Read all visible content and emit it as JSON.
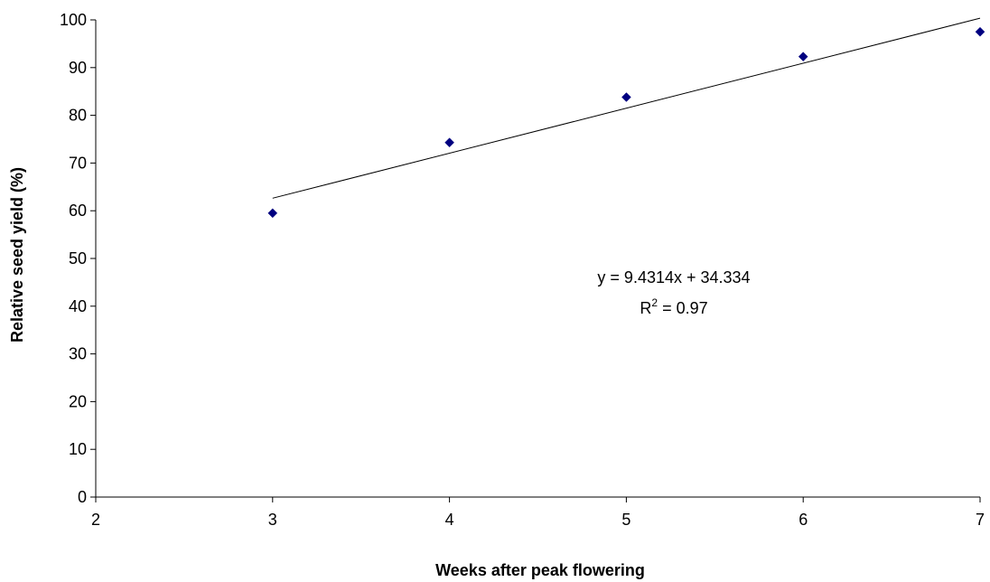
{
  "chart_data": {
    "type": "scatter",
    "xlabel": "Weeks after peak flowering",
    "ylabel": "Relative seed yield (%)",
    "xlim": [
      2,
      7
    ],
    "ylim": [
      0,
      100
    ],
    "xticks": [
      2,
      3,
      4,
      5,
      6,
      7
    ],
    "yticks": [
      0,
      10,
      20,
      30,
      40,
      50,
      60,
      70,
      80,
      90,
      100
    ],
    "grid": false,
    "series": [
      {
        "marker": "diamond",
        "color": "#000080",
        "points": [
          {
            "x": 3,
            "y": 59.5
          },
          {
            "x": 4,
            "y": 74.3
          },
          {
            "x": 5,
            "y": 83.8
          },
          {
            "x": 6,
            "y": 92.3
          },
          {
            "x": 7,
            "y": 97.5
          }
        ]
      }
    ],
    "trendline": {
      "type": "linear",
      "slope": 9.4314,
      "intercept": 34.334,
      "x_range": [
        3,
        7
      ],
      "color": "#000000"
    },
    "annotations": {
      "equation": "y = 9.4314x + 34.334",
      "r2_prefix": "R",
      "r2_sup": "2",
      "r2_value": " = 0.97"
    }
  }
}
